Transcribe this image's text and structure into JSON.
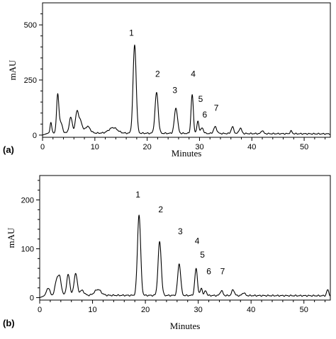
{
  "chart_data": [
    {
      "type": "line",
      "panel_label": "(a)",
      "xlabel": "Minutes",
      "ylabel": "mAU",
      "xlim": [
        0,
        55
      ],
      "ylim": [
        -10,
        600
      ],
      "xticks": [
        0,
        10,
        20,
        30,
        40,
        50
      ],
      "yticks": [
        0,
        250,
        500
      ],
      "baseline": 10,
      "baseline_slope": -0.08,
      "noise": 3,
      "peaks": [
        {
          "x": 1.6,
          "y": 50,
          "w": 0.15
        },
        {
          "x": 2.9,
          "y": 170,
          "w": 0.22
        },
        {
          "x": 3.5,
          "y": 45,
          "w": 0.3
        },
        {
          "x": 5.4,
          "y": 70,
          "w": 0.3
        },
        {
          "x": 6.6,
          "y": 100,
          "w": 0.3
        },
        {
          "x": 7.3,
          "y": 50,
          "w": 0.3
        },
        {
          "x": 8.6,
          "y": 30,
          "w": 0.5
        },
        {
          "x": 13.5,
          "y": 25,
          "w": 0.8
        },
        {
          "x": 17.6,
          "y": 400,
          "w": 0.3
        },
        {
          "x": 21.8,
          "y": 185,
          "w": 0.3
        },
        {
          "x": 25.5,
          "y": 115,
          "w": 0.3
        },
        {
          "x": 28.6,
          "y": 175,
          "w": 0.22
        },
        {
          "x": 29.7,
          "y": 55,
          "w": 0.2
        },
        {
          "x": 30.5,
          "y": 25,
          "w": 0.25
        },
        {
          "x": 33.0,
          "y": 30,
          "w": 0.3
        },
        {
          "x": 36.3,
          "y": 30,
          "w": 0.25
        },
        {
          "x": 37.8,
          "y": 25,
          "w": 0.25
        },
        {
          "x": 42.0,
          "y": 15,
          "w": 0.2
        },
        {
          "x": 47.5,
          "y": 12,
          "w": 0.2
        }
      ],
      "peak_labels": [
        {
          "text": "1",
          "x": 17.0,
          "y": 450
        },
        {
          "text": "2",
          "x": 22.0,
          "y": 265
        },
        {
          "text": "3",
          "x": 25.3,
          "y": 190
        },
        {
          "text": "4",
          "x": 28.8,
          "y": 265
        },
        {
          "text": "5",
          "x": 30.2,
          "y": 150
        },
        {
          "text": "6",
          "x": 31.0,
          "y": 80
        },
        {
          "text": "7",
          "x": 33.2,
          "y": 110
        }
      ]
    },
    {
      "type": "line",
      "panel_label": "(b)",
      "xlabel": "Minutes",
      "ylabel": "mAU",
      "xlim": [
        0,
        55
      ],
      "ylim": [
        -5,
        250
      ],
      "xticks": [
        0,
        10,
        20,
        30,
        40,
        50
      ],
      "yticks": [
        0,
        100,
        200
      ],
      "baseline": 5,
      "baseline_slope": -0.02,
      "noise": 1.5,
      "peaks": [
        {
          "x": 1.6,
          "y": 15,
          "w": 0.3
        },
        {
          "x": 3.2,
          "y": 30,
          "w": 0.3
        },
        {
          "x": 3.8,
          "y": 35,
          "w": 0.3
        },
        {
          "x": 5.4,
          "y": 42,
          "w": 0.3
        },
        {
          "x": 6.8,
          "y": 45,
          "w": 0.3
        },
        {
          "x": 8.0,
          "y": 10,
          "w": 0.4
        },
        {
          "x": 11.0,
          "y": 12,
          "w": 0.6
        },
        {
          "x": 18.8,
          "y": 165,
          "w": 0.3
        },
        {
          "x": 22.7,
          "y": 110,
          "w": 0.3
        },
        {
          "x": 26.4,
          "y": 65,
          "w": 0.28
        },
        {
          "x": 29.6,
          "y": 55,
          "w": 0.25
        },
        {
          "x": 30.6,
          "y": 15,
          "w": 0.2
        },
        {
          "x": 31.4,
          "y": 10,
          "w": 0.2
        },
        {
          "x": 34.4,
          "y": 10,
          "w": 0.25
        },
        {
          "x": 36.6,
          "y": 12,
          "w": 0.25
        },
        {
          "x": 38.6,
          "y": 6,
          "w": 0.25
        },
        {
          "x": 54.5,
          "y": 12,
          "w": 0.2
        }
      ],
      "peak_labels": [
        {
          "text": "1",
          "x": 18.6,
          "y": 205
        },
        {
          "text": "2",
          "x": 22.9,
          "y": 175
        },
        {
          "text": "3",
          "x": 26.6,
          "y": 130
        },
        {
          "text": "4",
          "x": 29.8,
          "y": 110
        },
        {
          "text": "5",
          "x": 30.8,
          "y": 82
        },
        {
          "text": "6",
          "x": 32.0,
          "y": 48
        },
        {
          "text": "7",
          "x": 34.6,
          "y": 48
        }
      ]
    }
  ]
}
